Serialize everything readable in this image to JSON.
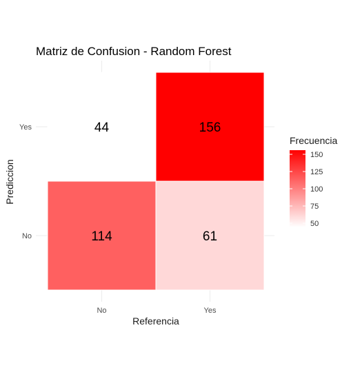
{
  "chart_data": {
    "type": "heatmap",
    "title": "Matriz de Confusion - Random Forest",
    "xlabel": "Referencia",
    "ylabel": "Prediccion",
    "x_categories": [
      "No",
      "Yes"
    ],
    "y_categories": [
      "No",
      "Yes"
    ],
    "cells": [
      {
        "x": "No",
        "y": "Yes",
        "value": 44
      },
      {
        "x": "Yes",
        "y": "Yes",
        "value": 156
      },
      {
        "x": "No",
        "y": "No",
        "value": 114
      },
      {
        "x": "Yes",
        "y": "No",
        "value": 61
      }
    ],
    "legend": {
      "title": "Frecuencia",
      "breaks": [
        50,
        75,
        100,
        125,
        150
      ],
      "range": [
        44,
        156
      ],
      "low_color": "#ffffff",
      "high_color": "#ff0000",
      "placement": "right"
    },
    "grid": true
  }
}
